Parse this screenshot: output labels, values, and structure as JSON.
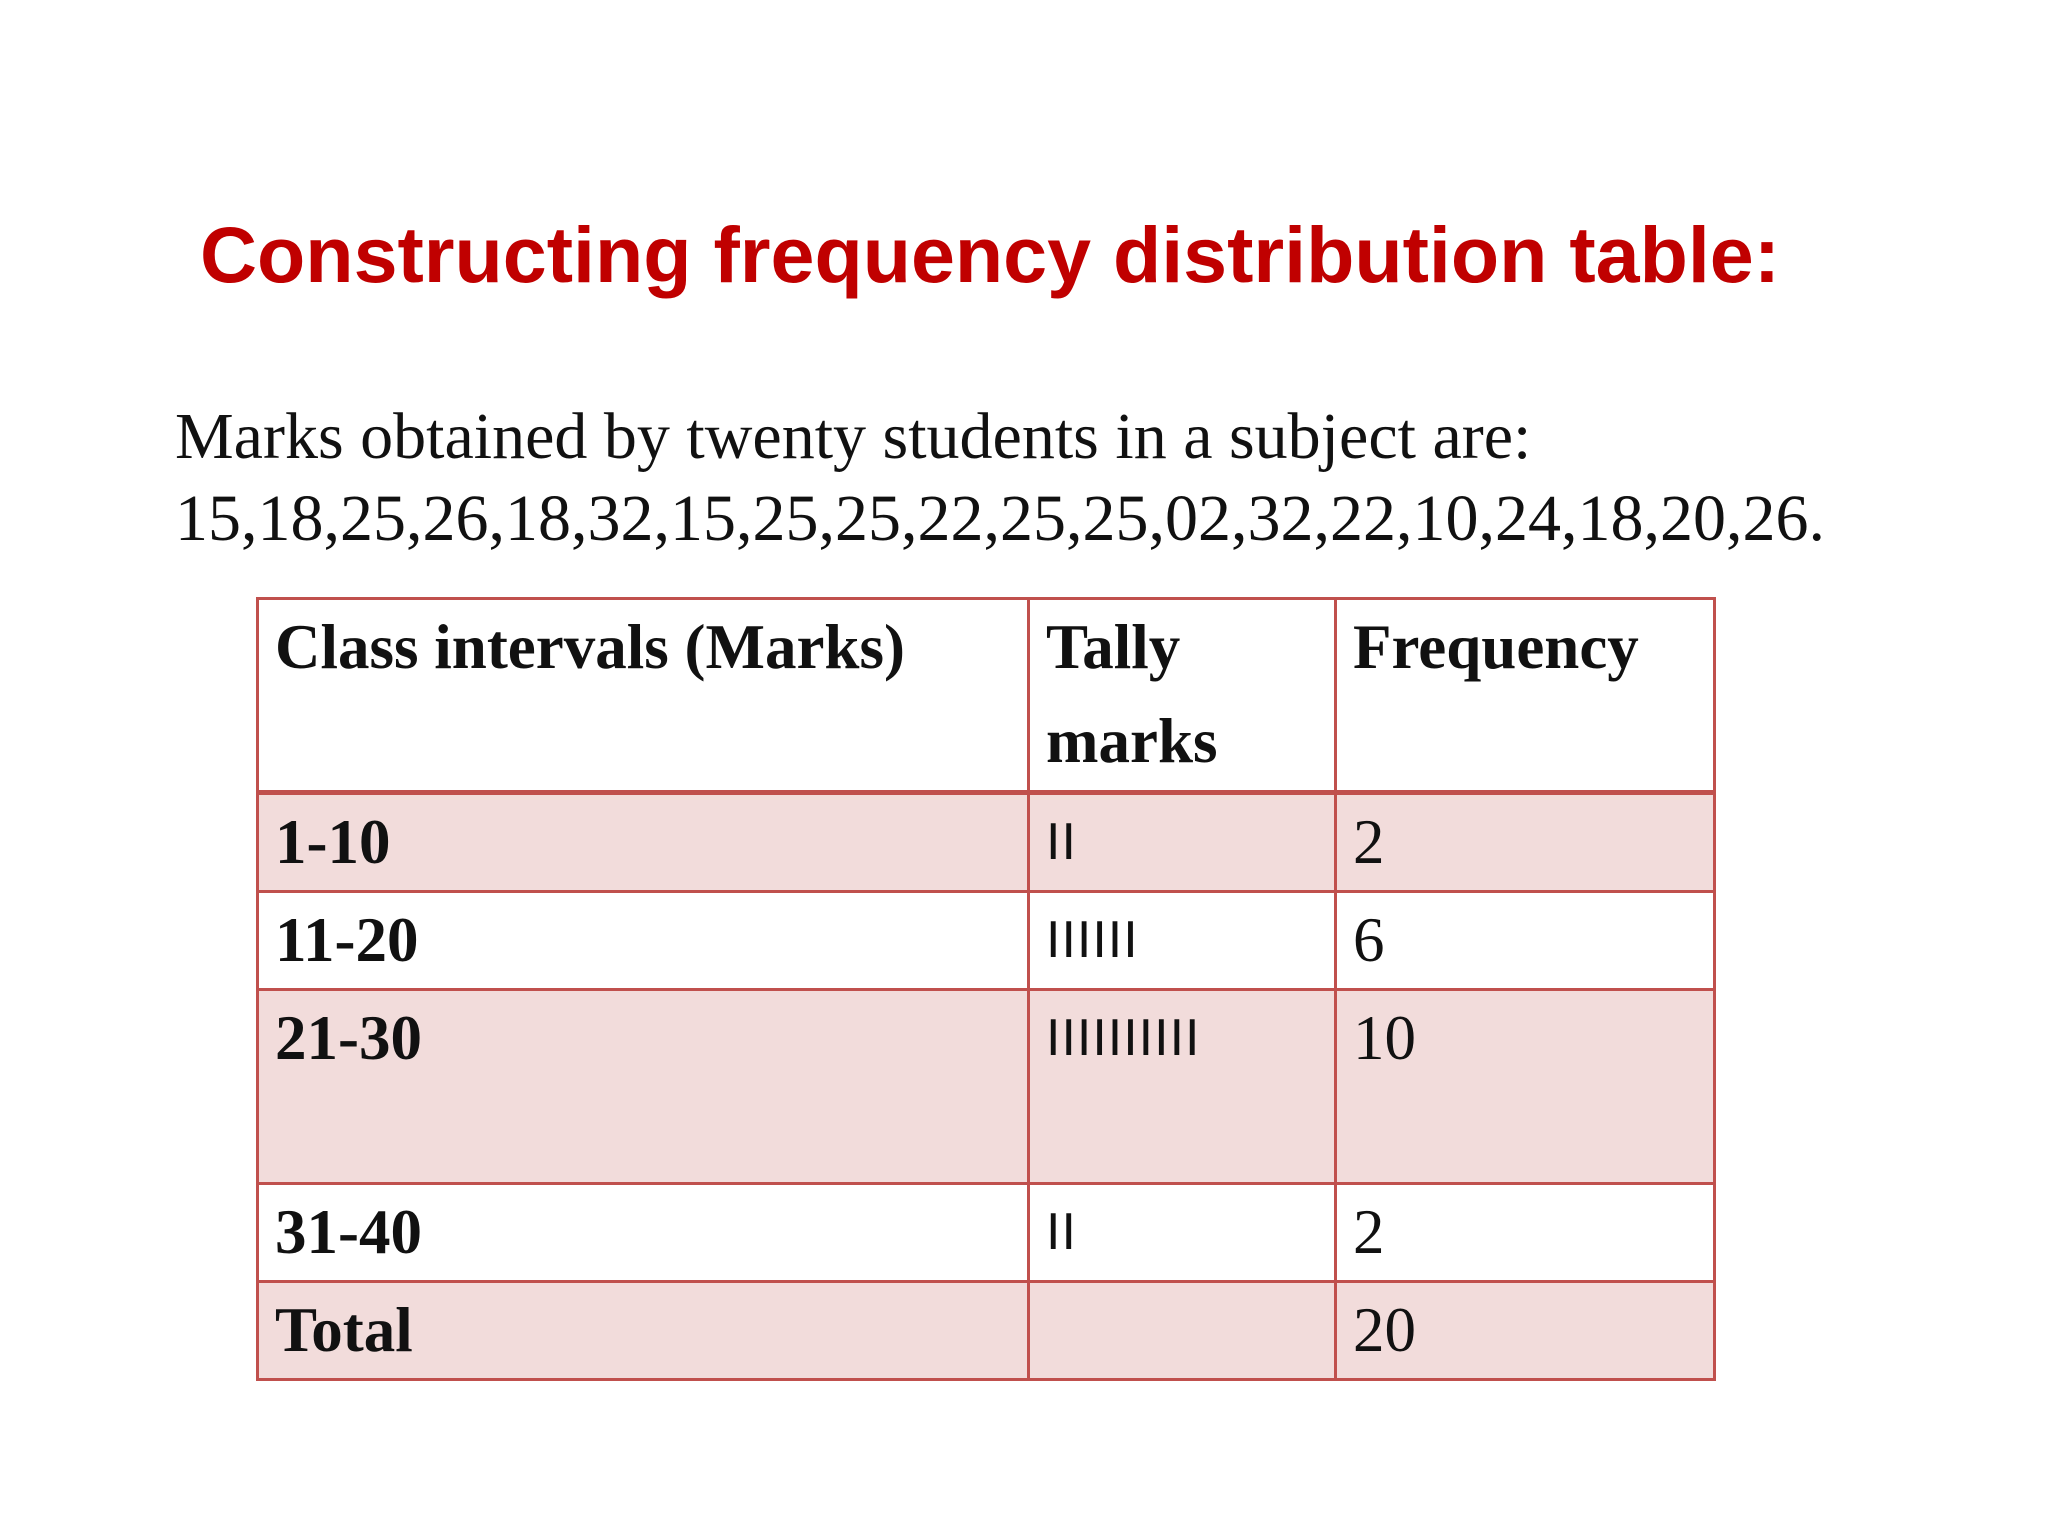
{
  "slide": {
    "title": "Constructing frequency distribution table:",
    "intro_line1": "Marks  obtained by twenty students in a subject are:",
    "intro_line2": "15,18,25,26,18,32,15,25,25,22,25,25,02,32,22,10,24,18,20,26."
  },
  "table": {
    "headers": [
      "Class intervals (Marks)",
      "Tally marks",
      "Frequency"
    ],
    "rows": [
      {
        "interval": "1-10",
        "tally": "II",
        "frequency": "2"
      },
      {
        "interval": "11-20",
        "tally": "IIIIII",
        "frequency": "6"
      },
      {
        "interval": "21-30",
        "tally": "IIIIIIIIII",
        "frequency": "10"
      },
      {
        "interval": "31-40",
        "tally": "II",
        "frequency": "2"
      },
      {
        "interval": "Total",
        "tally": "",
        "frequency": "20"
      }
    ]
  },
  "colors": {
    "title": "#c00000",
    "table_border": "#c0504d",
    "row_band": "#f2dcdb"
  }
}
